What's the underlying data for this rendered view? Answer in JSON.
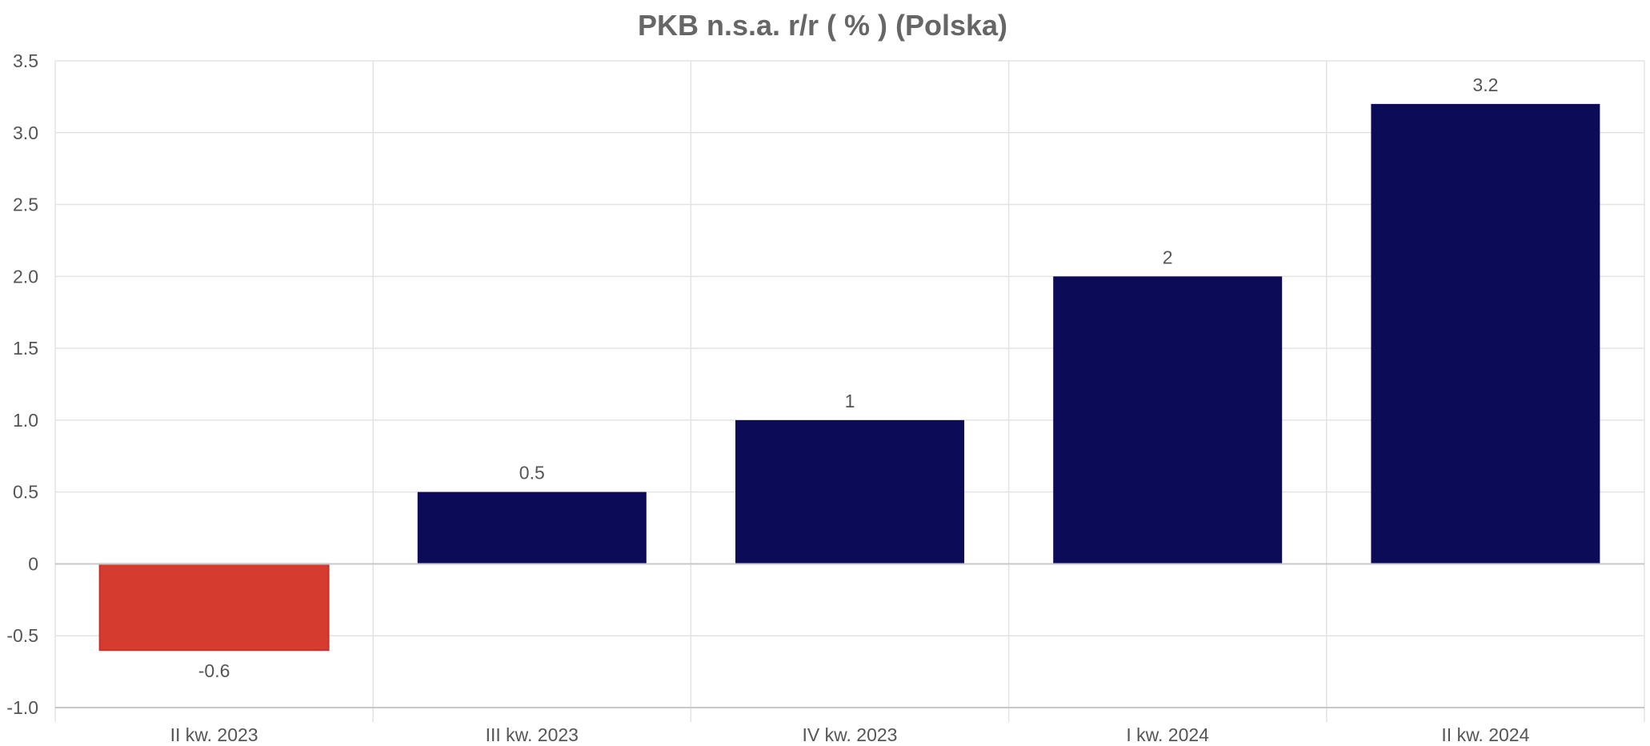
{
  "chart_data": {
    "type": "bar",
    "title": "PKB n.s.a. r/r ( % ) (Polska)",
    "xlabel": "",
    "ylabel": "",
    "categories": [
      "II kw. 2023",
      "III kw. 2023",
      "IV kw. 2023",
      "I kw. 2024",
      "II kw. 2024"
    ],
    "values": [
      -0.6,
      0.5,
      1,
      2,
      3.2
    ],
    "value_labels": [
      "-0.6",
      "0.5",
      "1",
      "2",
      "3.2"
    ],
    "ylim": [
      -1.0,
      3.5
    ],
    "yticks": [
      -1.0,
      -0.5,
      0,
      0.5,
      1.0,
      1.5,
      2.0,
      2.5,
      3.0,
      3.5
    ],
    "ytick_labels": [
      "-1.0",
      "-0.5",
      "0",
      "0.5",
      "1.0",
      "1.5",
      "2.0",
      "2.5",
      "3.0",
      "3.5"
    ],
    "grid": true,
    "legend": "none",
    "colors": {
      "positive": "#0b0b57",
      "negative": "#d63b30",
      "negative_border": "#c9302b"
    }
  }
}
